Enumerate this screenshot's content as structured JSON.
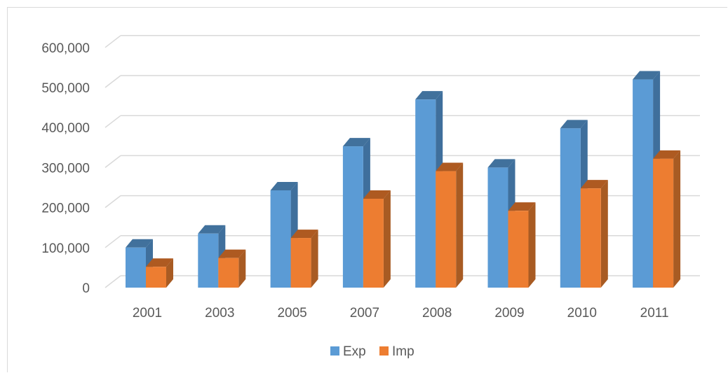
{
  "chart_data": {
    "type": "bar",
    "categories": [
      "2001",
      "2003",
      "2005",
      "2007",
      "2008",
      "2009",
      "2010",
      "2011"
    ],
    "series": [
      {
        "name": "Exp",
        "color": "#5b9bd5",
        "side_color": "#3f6f9c",
        "top_color": "#41719c",
        "values": [
          100000,
          135000,
          243000,
          353000,
          470000,
          300000,
          398000,
          520000
        ]
      },
      {
        "name": "Imp",
        "color": "#ed7d31",
        "side_color": "#a85b23",
        "top_color": "#ae5a21",
        "values": [
          52000,
          74000,
          124000,
          222000,
          291000,
          192000,
          248000,
          322000
        ]
      }
    ],
    "y_ticks": [
      "0",
      "100,000",
      "200,000",
      "300,000",
      "400,000",
      "500,000",
      "600,000"
    ],
    "ylim": [
      0,
      600000
    ],
    "grid": true,
    "legend_position": "bottom",
    "gridline_color": "#d9d9d9"
  }
}
